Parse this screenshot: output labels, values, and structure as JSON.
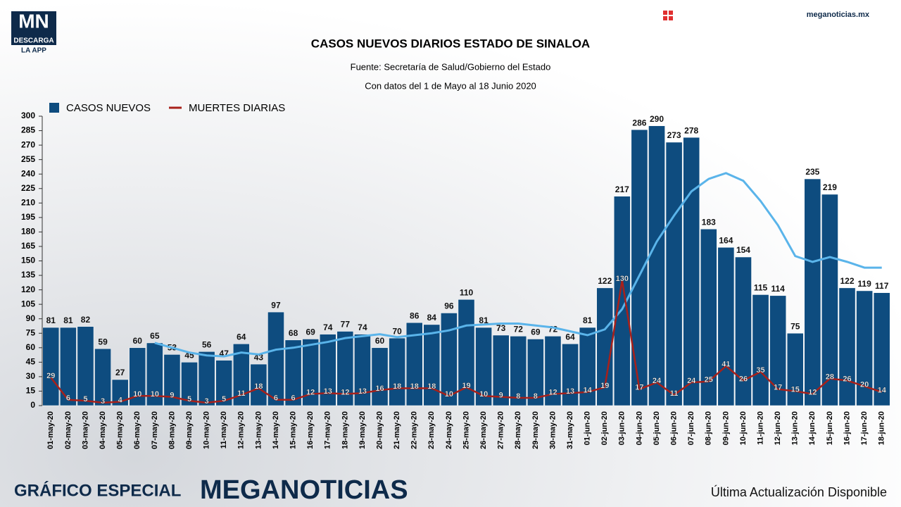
{
  "header": {
    "logo": "MN",
    "logo_sub": "DESCARGA",
    "logo_app": "LA APP",
    "site": "meganoticias.mx"
  },
  "footer": {
    "left": "GRÁFICO ESPECIAL",
    "brand": "MEGANOTICIAS",
    "right": "Última Actualización Disponible"
  },
  "chart_data": {
    "type": "bar",
    "title": "CASOS NUEVOS DIARIOS ESTADO DE SINALOA",
    "subtitle": "Fuente: Secretaría de Salud/Gobierno del Estado",
    "subtitle2": "Con datos del 1 de Mayo al 18 Junio 2020",
    "categories": [
      "01-may-20",
      "02-may-20",
      "03-may-20",
      "04-may-20",
      "05-may-20",
      "06-may-20",
      "07-may-20",
      "08-may-20",
      "09-may-20",
      "10-may-20",
      "11-may-20",
      "12-may-20",
      "13-may-20",
      "14-may-20",
      "15-may-20",
      "16-may-20",
      "17-may-20",
      "18-may-20",
      "19-may-20",
      "20-may-20",
      "21-may-20",
      "22-may-20",
      "23-may-20",
      "24-may-20",
      "25-may-20",
      "26-may-20",
      "27-may-20",
      "28-may-20",
      "29-may-20",
      "30-may-20",
      "31-may-20",
      "01-jun-20",
      "02-jun-20",
      "03-jun-20",
      "04-jun-20",
      "05-jun-20",
      "06-jun-20",
      "07-jun-20",
      "08-jun-20",
      "09-jun-20",
      "10-jun-20",
      "11-jun-20",
      "12-jun-20",
      "13-jun-20",
      "14-jun-20",
      "15-jun-20",
      "16-jun-20",
      "17-jun-20",
      "18-jun-20"
    ],
    "series": [
      {
        "name": "CASOS NUEVOS",
        "color": "#0e4c7f",
        "kind": "bar",
        "values": [
          81,
          81,
          82,
          59,
          27,
          60,
          65,
          53,
          45,
          56,
          47,
          64,
          43,
          97,
          68,
          69,
          74,
          77,
          74,
          60,
          70,
          86,
          84,
          96,
          110,
          81,
          73,
          72,
          69,
          72,
          64,
          81,
          122,
          217,
          286,
          290,
          273,
          278,
          183,
          164,
          154,
          115,
          114,
          75,
          235,
          219,
          122,
          119,
          117
        ]
      },
      {
        "name": "MUERTES DIARIAS",
        "color": "#a8201a",
        "kind": "line",
        "values": [
          29,
          6,
          5,
          3,
          4,
          10,
          10,
          9,
          5,
          3,
          5,
          11,
          18,
          6,
          6,
          12,
          13,
          12,
          13,
          16,
          18,
          18,
          18,
          10,
          19,
          10,
          9,
          8,
          8,
          12,
          13,
          14,
          19,
          130,
          17,
          24,
          11,
          24,
          25,
          41,
          26,
          35,
          17,
          15,
          12,
          28,
          26,
          20,
          14
        ]
      },
      {
        "color": "#5ab4ea",
        "kind": "trend",
        "values": [
          null,
          null,
          null,
          null,
          null,
          null,
          65,
          60,
          55,
          52,
          51,
          55,
          53,
          58,
          60,
          63,
          66,
          70,
          72,
          74,
          71,
          73,
          75,
          78,
          83,
          84,
          85,
          85,
          83,
          81,
          77,
          73,
          79,
          100,
          135,
          170,
          197,
          222,
          235,
          241,
          233,
          212,
          187,
          155,
          149,
          154,
          149,
          143,
          143
        ]
      }
    ],
    "ylim": [
      0,
      300
    ],
    "yticks": [
      0,
      15,
      30,
      45,
      60,
      75,
      90,
      105,
      120,
      135,
      150,
      165,
      180,
      195,
      210,
      225,
      240,
      255,
      270,
      285,
      300
    ],
    "grid": false,
    "legend": "top-left"
  }
}
